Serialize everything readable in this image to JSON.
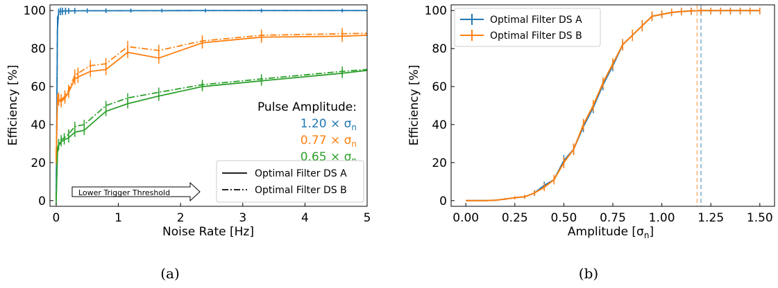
{
  "colors": {
    "blue": "#1f77b4",
    "orange": "#ff7f0e",
    "green": "#2ca02c",
    "threshold_box": "#000000"
  },
  "captions": {
    "a": "(a)",
    "b": "(b)"
  },
  "chart_data": [
    {
      "type": "line",
      "panel": "a",
      "xlabel": "Noise Rate [Hz]",
      "ylabel": "Efficiency [%]",
      "xlim": [
        -0.1,
        5
      ],
      "ylim": [
        -3,
        103
      ],
      "xticks": [
        "0",
        "1",
        "2",
        "3",
        "4",
        "5"
      ],
      "yticks": [
        "0",
        "20",
        "40",
        "60",
        "80",
        "100"
      ],
      "legend": {
        "placement": "lower-right",
        "entries": [
          {
            "label": "Optimal Filter DS A",
            "style": "solid"
          },
          {
            "label": "Optimal Filter DS B",
            "style": "dashdot"
          }
        ]
      },
      "annotations": {
        "amplitude_title": "Pulse Amplitude:",
        "amplitude_labels": [
          {
            "value": "1.20 × σ",
            "sub": "n",
            "color": "#1f77b4"
          },
          {
            "value": "0.77 × σ",
            "sub": "n",
            "color": "#ff7f0e"
          },
          {
            "value": "0.65 × σ",
            "sub": "n",
            "color": "#2ca02c"
          }
        ],
        "threshold_arrow": "Lower Trigger Threshold"
      },
      "series": [
        {
          "color": "#1f77b4",
          "style": "solid",
          "x": [
            0,
            0.02,
            0.04,
            0.07,
            0.1,
            0.15,
            0.2,
            0.3,
            0.5,
            0.8,
            1.2,
            1.7,
            2.4,
            3.3,
            4.6,
            5
          ],
          "y": [
            0,
            90,
            99.4,
            99.6,
            99.7,
            99.8,
            99.8,
            99.85,
            99.9,
            99.9,
            99.95,
            99.95,
            100,
            100,
            100,
            100
          ],
          "err": [
            0,
            6,
            1.5,
            2,
            2,
            2,
            1.5,
            1.5,
            1.2,
            1.2,
            1,
            1,
            1,
            1,
            1,
            0
          ]
        },
        {
          "color": "#1f77b4",
          "style": "dashdot",
          "x": [
            0,
            0.02,
            0.04,
            0.07,
            0.1,
            0.15,
            0.2,
            0.3,
            0.5,
            0.8,
            1.2,
            1.7,
            2.4,
            3.3,
            4.6,
            5
          ],
          "y": [
            0,
            91,
            99.5,
            99.6,
            99.7,
            99.8,
            99.8,
            99.85,
            99.9,
            99.9,
            99.95,
            99.95,
            100,
            100,
            100,
            100
          ],
          "err": [
            0,
            6,
            1.5,
            2,
            2,
            2,
            1.5,
            1.5,
            1.2,
            1.2,
            1,
            1,
            1,
            1,
            1,
            0
          ]
        },
        {
          "color": "#ff7f0e",
          "style": "solid",
          "x": [
            0,
            0.02,
            0.04,
            0.08,
            0.14,
            0.2,
            0.3,
            0.35,
            0.55,
            0.8,
            1.15,
            1.65,
            2.35,
            3.3,
            4.6,
            5
          ],
          "y": [
            22,
            52,
            53,
            52,
            54,
            57,
            64,
            65,
            68,
            69,
            78,
            75,
            83,
            86,
            86.5,
            87
          ],
          "err": [
            3,
            3,
            3,
            3,
            3,
            3,
            3,
            3,
            3,
            3,
            3,
            3,
            3,
            3,
            3,
            0
          ]
        },
        {
          "color": "#ff7f0e",
          "style": "dashdot",
          "x": [
            0,
            0.02,
            0.04,
            0.08,
            0.14,
            0.2,
            0.3,
            0.35,
            0.55,
            0.8,
            1.15,
            1.65,
            2.35,
            3.3,
            4.6,
            5
          ],
          "y": [
            24,
            53,
            54,
            53,
            55,
            58,
            66,
            67,
            71,
            72,
            81,
            79,
            84,
            87,
            87.8,
            88
          ],
          "err": [
            3,
            3,
            3,
            3,
            3,
            3,
            3,
            3,
            3,
            3,
            3,
            3,
            3,
            3,
            3,
            0
          ]
        },
        {
          "color": "#2ca02c",
          "style": "solid",
          "x": [
            0,
            0.02,
            0.04,
            0.08,
            0.13,
            0.2,
            0.3,
            0.45,
            0.8,
            1.15,
            1.65,
            2.35,
            3.3,
            4.6,
            5
          ],
          "y": [
            0,
            25,
            29,
            31,
            32,
            33,
            36,
            37,
            47,
            51,
            55,
            60,
            63,
            67,
            68.5
          ],
          "err": [
            2,
            2.5,
            2.5,
            2.5,
            2.5,
            2.5,
            2.5,
            2.5,
            2.5,
            2.5,
            2.5,
            2.5,
            2.5,
            2.5,
            0
          ]
        },
        {
          "color": "#2ca02c",
          "style": "dashdot",
          "x": [
            0,
            0.02,
            0.04,
            0.08,
            0.13,
            0.2,
            0.3,
            0.45,
            0.8,
            1.15,
            1.65,
            2.35,
            3.3,
            4.6,
            5
          ],
          "y": [
            1,
            26,
            30,
            32,
            33,
            35,
            39,
            40,
            50,
            54,
            57,
            61,
            64,
            68,
            69
          ],
          "err": [
            2,
            2.5,
            2.5,
            2.5,
            2.5,
            2.5,
            2.5,
            2.5,
            2.5,
            2.5,
            2.5,
            2.5,
            2.5,
            2.5,
            0
          ]
        }
      ]
    },
    {
      "type": "line",
      "panel": "b",
      "xlabel": "Amplitude [σ",
      "xlabel_sub": "n",
      "xlabel_end": "]",
      "ylabel": "Efficiency [%]",
      "xlim": [
        -0.075,
        1.575
      ],
      "ylim": [
        -3,
        103
      ],
      "xticks": [
        "0.00",
        "0.25",
        "0.50",
        "0.75",
        "1.00",
        "1.25",
        "1.50"
      ],
      "yticks": [
        "0",
        "20",
        "40",
        "60",
        "80",
        "100"
      ],
      "legend": {
        "placement": "top-left",
        "entries": [
          {
            "label": "Optimal Filter DS A",
            "color": "#1f77b4"
          },
          {
            "label": "Optimal Filter DS B",
            "color": "#ff7f0e"
          }
        ]
      },
      "vlines": [
        {
          "x": 1.2,
          "color": "#1f77b4"
        },
        {
          "x": 1.18,
          "color": "#ff7f0e"
        }
      ],
      "series": [
        {
          "name": "Optimal Filter DS A",
          "color": "#1f77b4",
          "x": [
            0.0,
            0.05,
            0.1,
            0.15,
            0.2,
            0.25,
            0.3,
            0.35,
            0.4,
            0.45,
            0.5,
            0.55,
            0.6,
            0.65,
            0.7,
            0.75,
            0.8,
            0.85,
            0.9,
            0.95,
            1.0,
            1.05,
            1.1,
            1.15,
            1.2,
            1.25,
            1.3,
            1.35,
            1.4,
            1.45,
            1.5
          ],
          "y": [
            0,
            0,
            0,
            0.2,
            0.8,
            1.5,
            2,
            4,
            8,
            11,
            21,
            27,
            39,
            49,
            61,
            71,
            82,
            87,
            92,
            97,
            98,
            99,
            99.5,
            99.8,
            100,
            100,
            100,
            100,
            100,
            100,
            100
          ],
          "err": [
            0,
            0,
            0,
            0.3,
            0.5,
            0.8,
            1,
            1.5,
            2,
            2.5,
            3,
            3,
            3,
            3,
            3,
            3,
            3,
            3,
            3,
            2.5,
            2,
            2,
            2,
            2,
            2,
            2,
            2,
            2,
            2,
            2,
            2
          ]
        },
        {
          "name": "Optimal Filter DS B",
          "color": "#ff7f0e",
          "x": [
            0.0,
            0.05,
            0.1,
            0.15,
            0.2,
            0.25,
            0.3,
            0.35,
            0.4,
            0.45,
            0.5,
            0.55,
            0.6,
            0.65,
            0.7,
            0.75,
            0.8,
            0.85,
            0.9,
            0.95,
            1.0,
            1.05,
            1.1,
            1.15,
            1.2,
            1.25,
            1.3,
            1.35,
            1.4,
            1.45,
            1.5
          ],
          "y": [
            0,
            0,
            0,
            0.2,
            0.8,
            1.5,
            2,
            4,
            7,
            11,
            20,
            27,
            40,
            50,
            62,
            72,
            82,
            87,
            92,
            97,
            98,
            99,
            99.5,
            99.8,
            100,
            100,
            100,
            100,
            100,
            100,
            100
          ],
          "err": [
            0,
            0,
            0,
            0.3,
            0.5,
            0.8,
            1,
            1.5,
            2,
            2.5,
            3,
            3,
            3,
            3,
            3,
            3,
            3,
            3,
            3,
            2.5,
            2,
            2,
            2,
            2,
            2,
            2,
            2,
            2,
            2,
            2,
            2
          ]
        }
      ]
    }
  ]
}
